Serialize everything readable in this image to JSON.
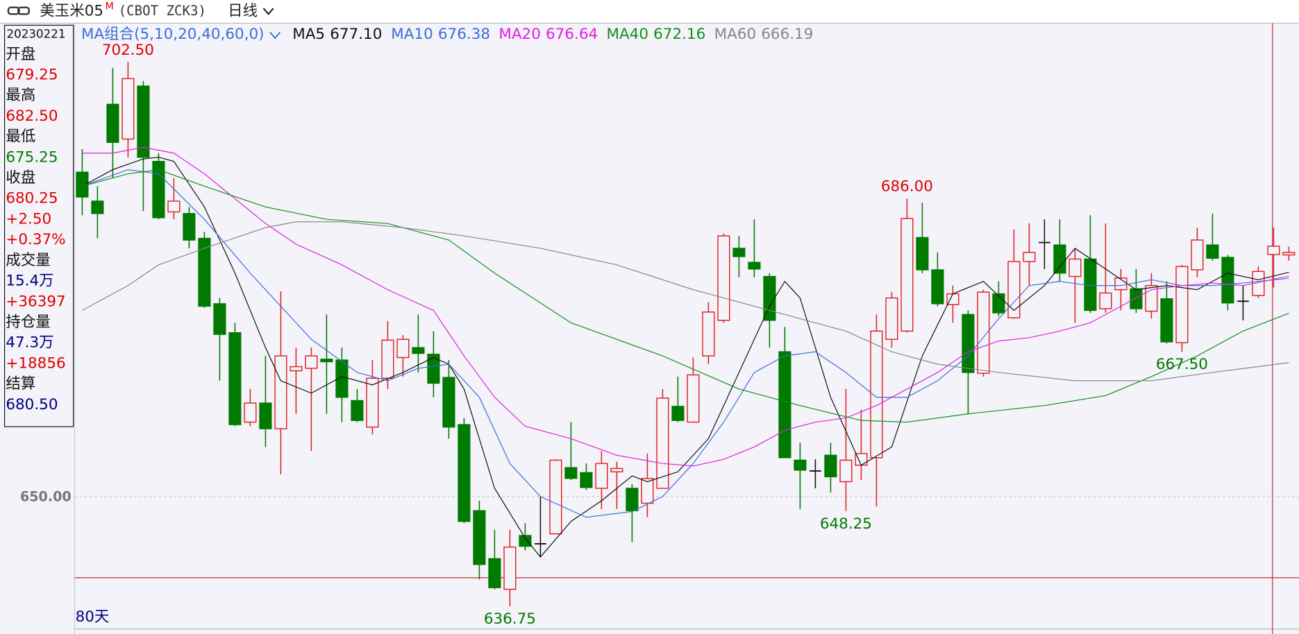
{
  "header": {
    "name": "美玉米05",
    "flag": "M",
    "code": "(CBOT ZCK3)",
    "period": "日线"
  },
  "info_panel": {
    "date": "20230221",
    "rows": [
      {
        "text": "开盘",
        "color": "#111111"
      },
      {
        "text": "679.25",
        "color": "#e00000"
      },
      {
        "text": "最高",
        "color": "#111111"
      },
      {
        "text": "682.50",
        "color": "#e00000"
      },
      {
        "text": "最低",
        "color": "#111111"
      },
      {
        "text": "675.25",
        "color": "#008000"
      },
      {
        "text": "收盘",
        "color": "#111111"
      },
      {
        "text": "680.25",
        "color": "#e00000"
      },
      {
        "text": "+2.50",
        "color": "#e00000"
      },
      {
        "text": "+0.37%",
        "color": "#e00000"
      },
      {
        "text": "成交量",
        "color": "#111111"
      },
      {
        "text": "15.4万",
        "color": "#000080"
      },
      {
        "text": "+36397",
        "color": "#e00000"
      },
      {
        "text": "持仓量",
        "color": "#111111"
      },
      {
        "text": "47.3万",
        "color": "#000080"
      },
      {
        "text": "+18856",
        "color": "#e00000"
      },
      {
        "text": "结算",
        "color": "#111111"
      },
      {
        "text": "680.50",
        "color": "#000080"
      }
    ]
  },
  "chart_data": {
    "type": "candlestick",
    "legend_title": "MA组合(5,10,20,40,60,0)",
    "days_label": "80天",
    "up_color": "#e02020",
    "down_color": "#007a00",
    "flat_color": "#111111",
    "ylim": [
      634,
      707.2
    ],
    "yticks": [
      {
        "value": 650,
        "label": "650.00"
      }
    ],
    "grid": true,
    "open": [
      689.2,
      685.7,
      697.4,
      693.2,
      699.6,
      690.5,
      684.4,
      684.2,
      681.2,
      673.3,
      669.8,
      659,
      661.3,
      658.2,
      665.2,
      665.5,
      666.6,
      666.5,
      661.6,
      658.4,
      664.3,
      666.8,
      668,
      667.2,
      664.4,
      658.7,
      648.3,
      642.5,
      638.8,
      645.3,
      644.3,
      645.5,
      653.5,
      652.9,
      651,
      653,
      651,
      649.2,
      651,
      660.9,
      659,
      667,
      671.3,
      680,
      678.3,
      676.6,
      667.5,
      654.4,
      653.1,
      655,
      651.8,
      653.8,
      654.7,
      669,
      670,
      681.3,
      677.4,
      673.2,
      672,
      664.9,
      674.5,
      671.6,
      678.4,
      680.7,
      680.4,
      676.6,
      678.7,
      672.7,
      675,
      675.1,
      672.4,
      673.9,
      668.6,
      677.4,
      680.4,
      678.9,
      673.6,
      674.3,
      679.25,
      679.2
    ],
    "high": [
      692,
      687.5,
      701.8,
      702.5,
      700.2,
      691.5,
      688.5,
      685,
      682,
      674,
      671,
      663,
      667,
      674.8,
      668,
      668,
      672,
      668,
      663,
      666.5,
      671.2,
      669.5,
      672,
      670,
      666.5,
      659.5,
      649.5,
      646,
      646,
      646.8,
      650,
      654.5,
      659,
      654,
      655.5,
      654.2,
      651.5,
      655.2,
      663,
      664.5,
      666.8,
      673.5,
      681.8,
      681.5,
      683.5,
      677,
      670.5,
      656.5,
      654.5,
      656.5,
      663,
      660.5,
      672,
      674.7,
      686,
      685.5,
      679.5,
      675.5,
      672.5,
      675,
      676,
      682.3,
      683,
      683.5,
      683.5,
      680,
      684,
      683,
      677.5,
      677.5,
      677,
      676,
      678,
      682.5,
      684.2,
      679.2,
      675.5,
      677.8,
      682.5,
      680.2
    ],
    "low": [
      684,
      681.2,
      688.5,
      691,
      684.5,
      683.5,
      683.5,
      680,
      672.8,
      664,
      658.5,
      658.5,
      656,
      652.7,
      660,
      655.5,
      660,
      659,
      659,
      657.5,
      663,
      664.5,
      665,
      662,
      657,
      646.8,
      640,
      638.8,
      636.75,
      643.5,
      642.8,
      645.5,
      652,
      650.8,
      648.5,
      648.5,
      644.5,
      647.5,
      651,
      659,
      659,
      666,
      671,
      676.5,
      676.5,
      668,
      654.7,
      648.5,
      651,
      650.5,
      648.25,
      652,
      648.8,
      668,
      669.8,
      677,
      673,
      671,
      660,
      664.5,
      671.8,
      671.5,
      675.5,
      677.5,
      676,
      671,
      672.2,
      672.2,
      672.5,
      672.2,
      671.5,
      668.5,
      667.5,
      676.5,
      678.5,
      672.5,
      671.3,
      674,
      675.25,
      678.5
    ],
    "close": [
      686.2,
      684.2,
      692.8,
      700.5,
      691,
      683.7,
      685.7,
      681,
      673,
      669.6,
      658.7,
      661.3,
      658.2,
      667,
      665.7,
      667,
      666.3,
      662,
      659.2,
      664.3,
      668.9,
      669,
      667.3,
      663.7,
      658.4,
      647,
      641.8,
      639,
      643.9,
      644,
      644.3,
      654.4,
      652.2,
      651.1,
      654,
      653.4,
      648.3,
      652.2,
      661.9,
      659.2,
      664.7,
      672.3,
      681.5,
      679,
      677.5,
      671.3,
      654.7,
      653.2,
      653.1,
      652.4,
      654.4,
      655.2,
      670,
      674,
      683.6,
      677.4,
      673.3,
      674.5,
      665,
      674.7,
      672.2,
      678.4,
      679.5,
      680.7,
      677,
      678.7,
      672.5,
      674.6,
      676.4,
      672.7,
      675.5,
      668.7,
      677.8,
      681,
      678.8,
      673.4,
      673.6,
      677.2,
      680.25,
      679.5
    ],
    "series": [
      {
        "name": "MA5",
        "color": "#111111",
        "last_label": "677.10",
        "x": [
          0,
          2,
          4,
          5,
          6,
          8,
          10,
          12,
          13,
          15,
          17,
          19,
          21,
          23,
          24,
          25,
          27,
          29,
          30,
          32,
          34,
          36,
          37,
          39,
          41,
          43,
          45,
          46,
          47,
          49,
          51,
          53,
          55,
          57,
          59,
          61,
          63,
          65,
          67,
          69,
          71,
          73,
          75,
          77,
          79
        ],
        "values": [
          687.5,
          689.5,
          690.8,
          691,
          690.5,
          685,
          677,
          668,
          664,
          662.5,
          664.5,
          663.5,
          665,
          666.8,
          666,
          663,
          651,
          645,
          642.7,
          647,
          649.5,
          652.5,
          651.8,
          653,
          657,
          665,
          673,
          676,
          674,
          662,
          653.8,
          656,
          667,
          674.5,
          676,
          672.5,
          675.5,
          680,
          677.5,
          675,
          675.5,
          675,
          677,
          676.2,
          677.1
        ]
      },
      {
        "name": "MA10",
        "color": "#3a6fd8",
        "last_label": "676.38",
        "x": [
          0,
          3,
          5,
          8,
          11,
          13,
          15,
          18,
          20,
          22,
          24,
          26,
          28,
          30,
          33,
          36,
          38,
          40,
          42,
          44,
          46,
          48,
          50,
          52,
          54,
          56,
          58,
          60,
          62,
          64,
          66,
          68,
          70,
          72,
          74,
          76,
          79
        ],
        "values": [
          687.5,
          689.5,
          689,
          683.5,
          677,
          673,
          669,
          665,
          664,
          665.5,
          666,
          662,
          654,
          650,
          647.5,
          648.2,
          650,
          654,
          659,
          665,
          667,
          667.5,
          665,
          662,
          662,
          664,
          667,
          671.5,
          675.5,
          676,
          675.5,
          675.5,
          676.2,
          675.5,
          675.5,
          675.8,
          676.38
        ]
      },
      {
        "name": "MA20",
        "color": "#e020e0",
        "last_label": "676.64",
        "x": [
          0,
          2,
          4,
          6,
          8,
          10,
          12,
          14,
          17,
          20,
          23,
          25,
          27,
          29,
          32,
          35,
          38,
          40,
          42,
          44,
          46,
          48,
          50,
          52,
          54,
          56,
          58,
          60,
          62,
          64,
          66,
          68,
          70,
          72,
          74,
          76,
          79
        ],
        "values": [
          691.5,
          691.5,
          692.2,
          691.5,
          689,
          686,
          683,
          680.5,
          678,
          675,
          672.5,
          667,
          662,
          658.5,
          657,
          655,
          654,
          653.7,
          654.5,
          656,
          658,
          659,
          659.5,
          661,
          663,
          665,
          667.5,
          668.8,
          669.2,
          670,
          671,
          673,
          675,
          675.5,
          675.8,
          675.5,
          676.64
        ]
      },
      {
        "name": "MA40",
        "color": "#10901a",
        "last_label": "672.16",
        "x": [
          0,
          3,
          5,
          8,
          12,
          16,
          20,
          24,
          27,
          32,
          38,
          43,
          47,
          51,
          54,
          58,
          63,
          67,
          70,
          73,
          76,
          79
        ],
        "values": [
          687.5,
          689,
          689.5,
          687.5,
          685,
          683.5,
          683,
          681,
          677,
          671,
          667,
          663,
          661,
          659.2,
          659,
          660,
          661,
          662.2,
          664.5,
          667,
          670,
          672.16
        ]
      },
      {
        "name": "MA60",
        "color": "#888888",
        "last_label": "666.19",
        "x": [
          0,
          3,
          5,
          8,
          12,
          14,
          17,
          21,
          25,
          30,
          35,
          40,
          45,
          50,
          53,
          56,
          60,
          65,
          70,
          74,
          79
        ],
        "values": [
          672.5,
          675.5,
          678,
          680,
          682.5,
          683.2,
          683.2,
          682.5,
          681.5,
          680,
          678,
          675,
          672.5,
          670,
          667.5,
          666,
          665,
          664,
          664,
          665,
          666.19
        ]
      }
    ],
    "annotations": [
      {
        "label": "702.50",
        "value": 702.5
      },
      {
        "label": "686.00",
        "value": 686
      },
      {
        "label": "636.75",
        "value": 636.75
      },
      {
        "label": "648.25",
        "value": 648.25
      },
      {
        "label": "667.50",
        "value": 667.5
      }
    ]
  }
}
